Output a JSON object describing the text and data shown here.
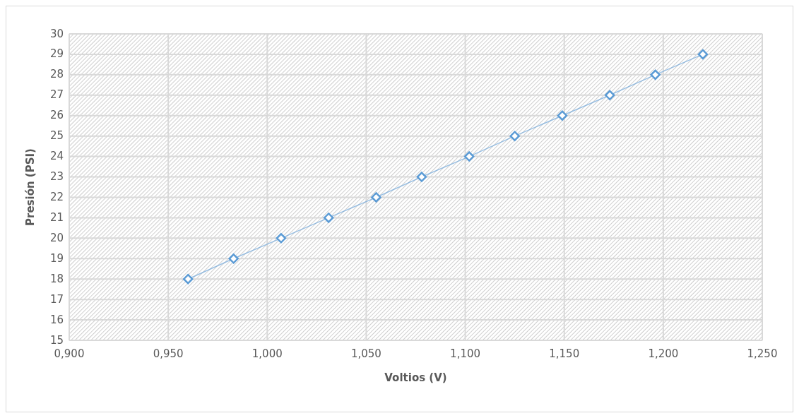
{
  "chart_data": {
    "type": "line",
    "xlabel": "Voltios (V)",
    "ylabel": "Presión (PSI)",
    "x": [
      0.96,
      0.983,
      1.007,
      1.031,
      1.055,
      1.078,
      1.102,
      1.125,
      1.149,
      1.173,
      1.196,
      1.22
    ],
    "series": [
      {
        "color": "#5b9bd5",
        "values": [
          18,
          19,
          20,
          21,
          22,
          23,
          24,
          25,
          26,
          27,
          28,
          29
        ]
      }
    ],
    "xlim": [
      0.9,
      1.25
    ],
    "xticks": [
      {
        "value": 0.9,
        "label": "0,900"
      },
      {
        "value": 0.95,
        "label": "0,950"
      },
      {
        "value": 1.0,
        "label": "1,000"
      },
      {
        "value": 1.05,
        "label": "1,050"
      },
      {
        "value": 1.1,
        "label": "1,100"
      },
      {
        "value": 1.15,
        "label": "1,150"
      },
      {
        "value": 1.2,
        "label": "1,200"
      },
      {
        "value": 1.25,
        "label": "1,250"
      }
    ],
    "ylim": [
      15,
      30
    ],
    "yticks": [
      15,
      16,
      17,
      18,
      19,
      20,
      21,
      22,
      23,
      24,
      25,
      26,
      27,
      28,
      29,
      30
    ],
    "grid": true,
    "marker": "diamond",
    "line_style": "solid"
  }
}
